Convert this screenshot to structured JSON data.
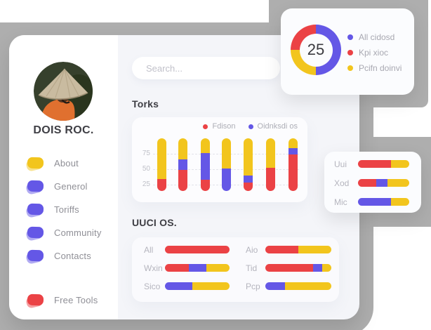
{
  "colors": {
    "red": "#EB4245",
    "yellow": "#F2C51D",
    "purple": "#6457E6",
    "gray": "#AEAEAE",
    "main_bg": "#F4F5F9"
  },
  "sidebar": {
    "name": "DOIS ROC.",
    "menu": [
      {
        "label": "About",
        "color": "yellow"
      },
      {
        "label": "Generol",
        "color": "purple"
      },
      {
        "label": "Toriffs",
        "color": "purple"
      },
      {
        "label": "Community",
        "color": "purple"
      },
      {
        "label": "Contacts",
        "color": "purple"
      }
    ],
    "footer_menu": [
      {
        "label": "Free Tools",
        "color": "red"
      }
    ]
  },
  "search": {
    "placeholder": "Search..."
  },
  "donut_card": {
    "center_value": "25",
    "segments": [
      {
        "color": "purple",
        "pct": 50
      },
      {
        "color": "yellow",
        "pct": 25
      },
      {
        "color": "red",
        "pct": 25
      }
    ],
    "legend": [
      {
        "label": "All cidosd",
        "color": "purple"
      },
      {
        "label": "Kpi xioc",
        "color": "red"
      },
      {
        "label": "Pcifn doinvi",
        "color": "yellow"
      }
    ]
  },
  "torks": {
    "title": "Torks",
    "legend": [
      {
        "label": "Fdison",
        "color": "red"
      },
      {
        "label": "Oidnksdi os",
        "color": "purple"
      }
    ],
    "y_ticks": [
      75,
      50,
      25
    ],
    "bars": [
      [
        23,
        0,
        77
      ],
      [
        40,
        20,
        40
      ],
      [
        22,
        50,
        28
      ],
      [
        0,
        43,
        57
      ],
      [
        16,
        14,
        70
      ],
      [
        44,
        0,
        56
      ],
      [
        70,
        12,
        18
      ]
    ]
  },
  "uuci": {
    "title": "UUCI OS.",
    "columns": [
      [
        {
          "label": "All",
          "segments": [
            [
              "red",
              100
            ]
          ]
        },
        {
          "label": "Wxin",
          "segments": [
            [
              "red",
              37
            ],
            [
              "purple",
              27
            ],
            [
              "yellow",
              36
            ]
          ]
        },
        {
          "label": "Sico",
          "segments": [
            [
              "purple",
              42
            ],
            [
              "yellow",
              58
            ]
          ]
        }
      ],
      [
        {
          "label": "Aio",
          "segments": [
            [
              "red",
              50
            ],
            [
              "yellow",
              50
            ]
          ]
        },
        {
          "label": "Tid",
          "segments": [
            [
              "red",
              72
            ],
            [
              "purple",
              14
            ],
            [
              "yellow",
              14
            ]
          ]
        },
        {
          "label": "Pcp",
          "segments": [
            [
              "purple",
              30
            ],
            [
              "yellow",
              70
            ]
          ]
        }
      ]
    ]
  },
  "side_card": {
    "rows": [
      {
        "label": "Uui",
        "segments": [
          [
            "red",
            65
          ],
          [
            "yellow",
            35
          ]
        ]
      },
      {
        "label": "Xod",
        "segments": [
          [
            "red",
            35
          ],
          [
            "purple",
            22
          ],
          [
            "yellow",
            43
          ]
        ]
      },
      {
        "label": "Mic",
        "segments": [
          [
            "purple",
            65
          ],
          [
            "yellow",
            35
          ]
        ]
      }
    ]
  },
  "chart_data": [
    {
      "type": "pie",
      "labels": [
        "All cidosd",
        "Kpi xioc",
        "Pcifn doinvi"
      ],
      "values": [
        50,
        25,
        25
      ],
      "center_label": "25",
      "legend_position": "right"
    },
    {
      "type": "bar",
      "title": "Torks",
      "stacked": true,
      "categories": [
        "",
        "",
        "",
        "",
        "",
        "",
        ""
      ],
      "series": [
        {
          "name": "Fdison",
          "color": "red",
          "values": [
            23,
            40,
            22,
            0,
            16,
            44,
            70
          ]
        },
        {
          "name": "Oidnksdi os",
          "color": "purple",
          "values": [
            0,
            20,
            50,
            43,
            14,
            0,
            12
          ]
        },
        {
          "name": "",
          "color": "yellow",
          "values": [
            77,
            40,
            28,
            57,
            70,
            56,
            18
          ]
        }
      ],
      "y_ticks": [
        25,
        50,
        75
      ],
      "grid": true,
      "legend_position": "top-right"
    },
    {
      "type": "bar",
      "title": "UUCI OS.",
      "orientation": "horizontal",
      "stacked": true,
      "categories": [
        "All",
        "Wxin",
        "Sico",
        "Aio",
        "Tid",
        "Pcp"
      ],
      "series_note": "segment percents per row (red/purple/yellow)",
      "values": [
        [
          100,
          0,
          0
        ],
        [
          37,
          27,
          36
        ],
        [
          0,
          42,
          58
        ],
        [
          50,
          0,
          50
        ],
        [
          72,
          14,
          14
        ],
        [
          0,
          30,
          70
        ]
      ]
    },
    {
      "type": "bar",
      "orientation": "horizontal",
      "stacked": true,
      "categories": [
        "Uui",
        "Xod",
        "Mic"
      ],
      "values": [
        [
          65,
          0,
          35
        ],
        [
          35,
          22,
          43
        ],
        [
          0,
          65,
          35
        ]
      ]
    }
  ]
}
